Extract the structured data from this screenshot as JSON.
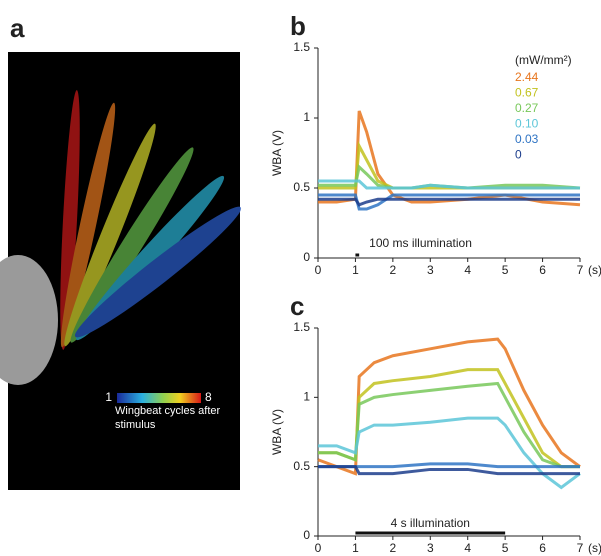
{
  "panel_a": {
    "label": "a",
    "colorbar": {
      "min_label": "1",
      "max_label": "8",
      "caption": "Wingbeat cycles after stimulus"
    }
  },
  "chart_data": [
    {
      "type": "line",
      "panel_label": "b",
      "ylabel": "WBA (V)",
      "x_unit": "(s)",
      "legend_title": "(mW/mm²)",
      "annotation": "100 ms illumination",
      "stimulus": [
        1,
        1.1
      ],
      "x": [
        0,
        0.5,
        1,
        1.1,
        1.3,
        1.6,
        2,
        2.5,
        3,
        4,
        5,
        6,
        7
      ],
      "xlim": [
        0,
        7
      ],
      "xticks": [
        0,
        1,
        2,
        3,
        4,
        5,
        6,
        7
      ],
      "ylim": [
        0,
        1.5
      ],
      "yticks": [
        0,
        0.5,
        1,
        1.5
      ],
      "series": [
        {
          "name": "2.44",
          "color": "#e8761e",
          "values": [
            0.4,
            0.4,
            0.42,
            1.05,
            0.9,
            0.6,
            0.45,
            0.4,
            0.4,
            0.42,
            0.45,
            0.4,
            0.38
          ]
        },
        {
          "name": "0.67",
          "color": "#c2c21e",
          "values": [
            0.5,
            0.5,
            0.5,
            0.8,
            0.7,
            0.55,
            0.5,
            0.5,
            0.5,
            0.5,
            0.5,
            0.5,
            0.5
          ]
        },
        {
          "name": "0.27",
          "color": "#78c85a",
          "values": [
            0.52,
            0.52,
            0.52,
            0.65,
            0.6,
            0.52,
            0.5,
            0.5,
            0.52,
            0.5,
            0.52,
            0.52,
            0.5
          ]
        },
        {
          "name": "0.10",
          "color": "#5cc6d8",
          "values": [
            0.55,
            0.55,
            0.55,
            0.55,
            0.5,
            0.5,
            0.5,
            0.5,
            0.52,
            0.5,
            0.5,
            0.5,
            0.5
          ]
        },
        {
          "name": "0.03",
          "color": "#2f74c4",
          "values": [
            0.45,
            0.45,
            0.45,
            0.35,
            0.35,
            0.38,
            0.45,
            0.45,
            0.45,
            0.45,
            0.45,
            0.45,
            0.45
          ]
        },
        {
          "name": "0",
          "color": "#1c3d8c",
          "values": [
            0.42,
            0.42,
            0.42,
            0.38,
            0.4,
            0.42,
            0.42,
            0.42,
            0.42,
            0.42,
            0.42,
            0.42,
            0.42
          ]
        }
      ]
    },
    {
      "type": "line",
      "panel_label": "c",
      "ylabel": "WBA (V)",
      "x_unit": "(s)",
      "annotation": "4 s illumination",
      "stimulus": [
        1,
        5
      ],
      "x": [
        0,
        0.5,
        1,
        1.1,
        1.5,
        2,
        3,
        4,
        4.8,
        5,
        5.5,
        6,
        6.5,
        7
      ],
      "xlim": [
        0,
        7
      ],
      "xticks": [
        0,
        1,
        2,
        3,
        4,
        5,
        6,
        7
      ],
      "ylim": [
        0,
        1.5
      ],
      "yticks": [
        0,
        0.5,
        1,
        1.5
      ],
      "series": [
        {
          "color": "#e8761e",
          "values": [
            0.55,
            0.5,
            0.45,
            1.15,
            1.25,
            1.3,
            1.35,
            1.4,
            1.42,
            1.35,
            1.05,
            0.8,
            0.6,
            0.5
          ]
        },
        {
          "color": "#c2c21e",
          "values": [
            0.6,
            0.6,
            0.55,
            1.0,
            1.1,
            1.12,
            1.15,
            1.2,
            1.2,
            1.1,
            0.85,
            0.6,
            0.5,
            0.5
          ]
        },
        {
          "color": "#78c85a",
          "values": [
            0.6,
            0.6,
            0.55,
            0.95,
            1.0,
            1.02,
            1.05,
            1.08,
            1.1,
            1.0,
            0.75,
            0.55,
            0.5,
            0.5
          ]
        },
        {
          "color": "#5cc6d8",
          "values": [
            0.65,
            0.65,
            0.6,
            0.75,
            0.8,
            0.8,
            0.82,
            0.85,
            0.85,
            0.8,
            0.6,
            0.45,
            0.35,
            0.45
          ]
        },
        {
          "color": "#2f74c4",
          "values": [
            0.5,
            0.5,
            0.5,
            0.5,
            0.5,
            0.5,
            0.52,
            0.52,
            0.5,
            0.5,
            0.5,
            0.5,
            0.5,
            0.5
          ]
        },
        {
          "color": "#1c3d8c",
          "values": [
            0.5,
            0.5,
            0.5,
            0.45,
            0.45,
            0.45,
            0.48,
            0.48,
            0.45,
            0.45,
            0.45,
            0.45,
            0.45,
            0.45
          ]
        }
      ]
    }
  ]
}
